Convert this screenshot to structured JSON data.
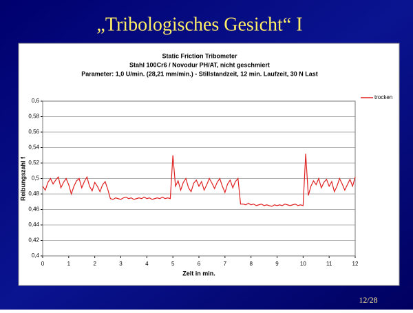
{
  "slide": {
    "title": "„Tribologisches Gesicht“ I",
    "page": "12/28"
  },
  "chart_data": {
    "type": "line",
    "title": "Static Friction Tribometer",
    "subtitle": [
      "Stahl 100Cr6 / Novodur PH/AT, nicht geschmiert",
      "Parameter: 1,0 U/min. (28,21 mm/min.) - Stillstandzeit, 12 min. Laufzeit, 30 N Last"
    ],
    "x_label": "Zeit in min.",
    "y_label": "Reibungszahl f",
    "xlim": [
      0,
      12
    ],
    "xticks": [
      0,
      1,
      2,
      3,
      4,
      5,
      6,
      7,
      8,
      9,
      10,
      11,
      12
    ],
    "ylim": [
      0.4,
      0.6
    ],
    "yticks": [
      {
        "value": 0.4,
        "label": "0,4"
      },
      {
        "value": 0.42,
        "label": "0,42"
      },
      {
        "value": 0.44,
        "label": "0,44"
      },
      {
        "value": 0.46,
        "label": "0,46"
      },
      {
        "value": 0.48,
        "label": "0,48"
      },
      {
        "value": 0.5,
        "label": "0,5"
      },
      {
        "value": 0.52,
        "label": "0,52"
      },
      {
        "value": 0.54,
        "label": "0,54"
      },
      {
        "value": 0.56,
        "label": "0,56"
      },
      {
        "value": 0.58,
        "label": "0,58"
      },
      {
        "value": 0.6,
        "label": "0,6"
      }
    ],
    "grid": true,
    "legend": "right",
    "x": [
      0,
      0.1,
      0.2,
      0.3,
      0.4,
      0.5,
      0.6,
      0.7,
      0.8,
      0.9,
      1,
      1.1,
      1.2,
      1.3,
      1.4,
      1.5,
      1.6,
      1.7,
      1.8,
      1.9,
      2,
      2.1,
      2.2,
      2.3,
      2.4,
      2.5,
      2.6,
      2.7,
      2.8,
      2.9,
      3,
      3.1,
      3.2,
      3.3,
      3.4,
      3.5,
      3.6,
      3.7,
      3.8,
      3.9,
      4,
      4.1,
      4.2,
      4.3,
      4.4,
      4.5,
      4.6,
      4.7,
      4.8,
      4.9,
      5,
      5.1,
      5.2,
      5.3,
      5.4,
      5.5,
      5.6,
      5.7,
      5.8,
      5.9,
      6,
      6.1,
      6.2,
      6.3,
      6.4,
      6.5,
      6.6,
      6.7,
      6.8,
      6.9,
      7,
      7.1,
      7.2,
      7.3,
      7.4,
      7.5,
      7.6,
      7.7,
      7.8,
      7.9,
      8,
      8.1,
      8.2,
      8.3,
      8.4,
      8.5,
      8.6,
      8.7,
      8.8,
      8.9,
      9,
      9.1,
      9.2,
      9.3,
      9.4,
      9.5,
      9.6,
      9.7,
      9.8,
      9.9,
      10,
      10.1,
      10.2,
      10.3,
      10.4,
      10.5,
      10.6,
      10.7,
      10.8,
      10.9,
      11,
      11.1,
      11.2,
      11.3,
      11.4,
      11.5,
      11.6,
      11.7,
      11.8,
      11.9,
      12
    ],
    "series": [
      {
        "name": "trocken",
        "color": "#e02020",
        "values": [
          0.49,
          0.485,
          0.495,
          0.5,
          0.493,
          0.498,
          0.502,
          0.488,
          0.495,
          0.5,
          0.492,
          0.48,
          0.49,
          0.497,
          0.5,
          0.488,
          0.496,
          0.502,
          0.49,
          0.484,
          0.495,
          0.49,
          0.483,
          0.492,
          0.496,
          0.486,
          0.474,
          0.473,
          0.475,
          0.474,
          0.473,
          0.475,
          0.476,
          0.474,
          0.475,
          0.473,
          0.474,
          0.475,
          0.474,
          0.476,
          0.474,
          0.475,
          0.473,
          0.474,
          0.475,
          0.474,
          0.476,
          0.474,
          0.475,
          0.474,
          0.53,
          0.49,
          0.497,
          0.485,
          0.495,
          0.5,
          0.488,
          0.483,
          0.494,
          0.498,
          0.49,
          0.496,
          0.485,
          0.492,
          0.5,
          0.494,
          0.487,
          0.495,
          0.5,
          0.49,
          0.482,
          0.493,
          0.498,
          0.488,
          0.496,
          0.5,
          0.467,
          0.467,
          0.466,
          0.468,
          0.466,
          0.467,
          0.465,
          0.466,
          0.467,
          0.465,
          0.466,
          0.465,
          0.464,
          0.466,
          0.465,
          0.466,
          0.465,
          0.467,
          0.466,
          0.465,
          0.466,
          0.467,
          0.465,
          0.466,
          0.465,
          0.532,
          0.478,
          0.49,
          0.497,
          0.492,
          0.5,
          0.488,
          0.495,
          0.499,
          0.49,
          0.496,
          0.483,
          0.49,
          0.5,
          0.493,
          0.485,
          0.492,
          0.499,
          0.49,
          0.502
        ]
      }
    ]
  }
}
